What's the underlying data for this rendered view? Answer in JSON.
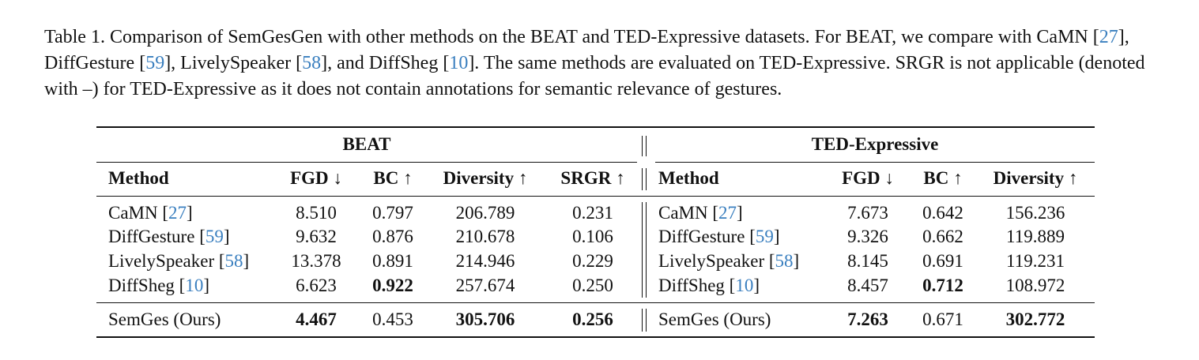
{
  "caption": {
    "prefix": "Table 1. Comparison of SemGesGen with other methods on the BEAT and TED-Expressive datasets. For BEAT, we compare with CaMN [",
    "cite1": "27",
    "t1": "], DiffGesture [",
    "cite2": "59",
    "t2": "], LivelySpeaker [",
    "cite3": "58",
    "t3": "], and DiffSheg [",
    "cite4": "10",
    "suffix": "]. The same methods are evaluated on TED-Expressive. SRGR is not applicable (denoted with –) for TED-Expressive as it does not contain annotations for semantic relevance of gestures."
  },
  "table": {
    "left_group": "BEAT",
    "right_group": "TED-Expressive",
    "left_headers": [
      "Method",
      "FGD ↓",
      "BC ↑",
      "Diversity ↑",
      "SRGR ↑"
    ],
    "right_headers": [
      "Method",
      "FGD ↓",
      "BC ↑",
      "Diversity ↑"
    ],
    "rows": [
      {
        "name": "CaMN ",
        "cite": "27",
        "beat": [
          "8.510",
          "0.797",
          "206.789",
          "0.231"
        ],
        "ted": [
          "7.673",
          "0.642",
          "156.236"
        ]
      },
      {
        "name": "DiffGesture ",
        "cite": "59",
        "beat": [
          "9.632",
          "0.876",
          "210.678",
          "0.106"
        ],
        "ted": [
          "9.326",
          "0.662",
          "119.889"
        ]
      },
      {
        "name": "LivelySpeaker ",
        "cite": "58",
        "beat": [
          "13.378",
          "0.891",
          "214.946",
          "0.229"
        ],
        "ted": [
          "8.145",
          "0.691",
          "119.231"
        ]
      },
      {
        "name": "DiffSheg ",
        "cite": "10",
        "beat": [
          "6.623",
          "0.922",
          "257.674",
          "0.250"
        ],
        "ted": [
          "8.457",
          "0.712",
          "108.972"
        ]
      }
    ],
    "ours": {
      "name": "SemGes (Ours)",
      "beat": [
        "4.467",
        "0.453",
        "305.706",
        "0.256"
      ],
      "ted": [
        "7.263",
        "0.671",
        "302.772"
      ]
    }
  }
}
